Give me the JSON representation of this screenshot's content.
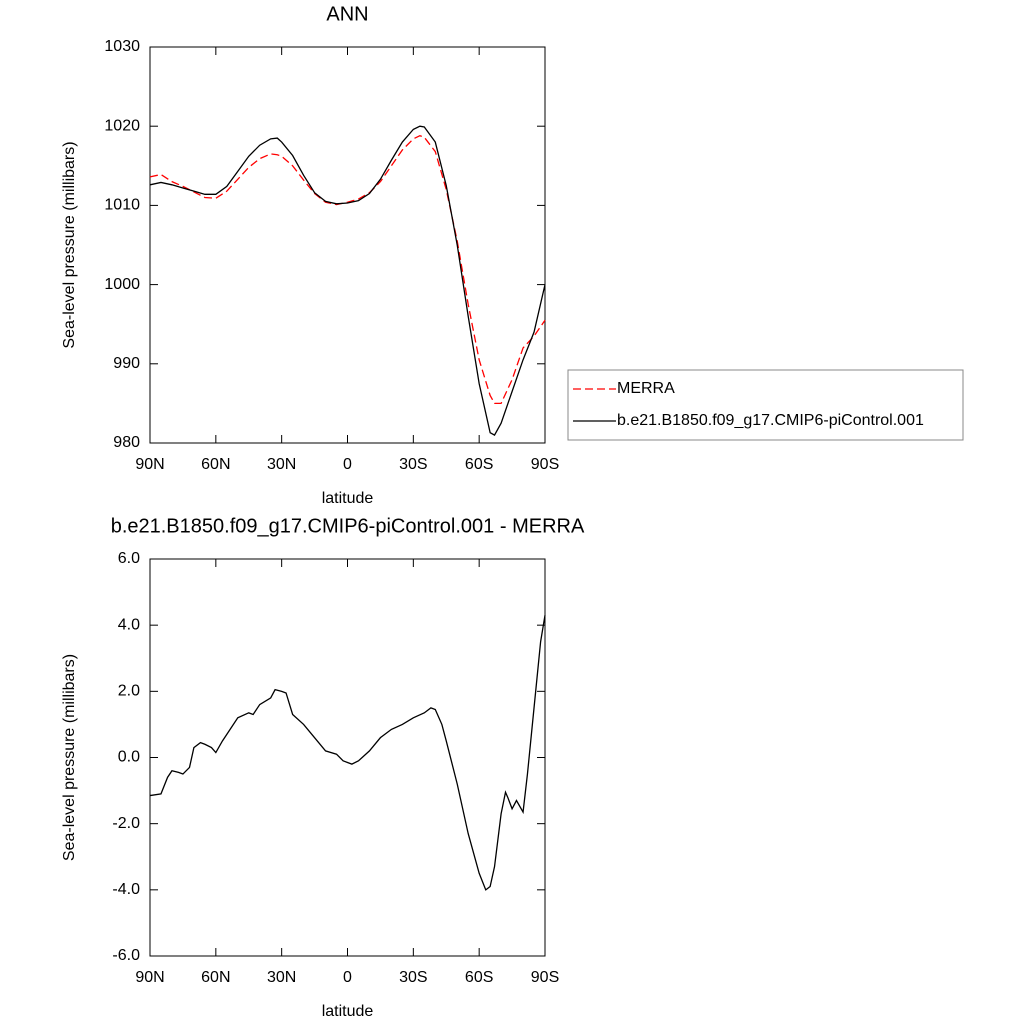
{
  "chart_data": [
    {
      "type": "line",
      "title": "ANN",
      "xlabel": "latitude",
      "ylabel": "Sea-level pressure (millibars)",
      "x": [
        90,
        85,
        80,
        75,
        70,
        65,
        60,
        55,
        50,
        45,
        40,
        35,
        32,
        30,
        25,
        20,
        15,
        10,
        5,
        0,
        -5,
        -10,
        -15,
        -20,
        -25,
        -30,
        -33,
        -35,
        -40,
        -45,
        -50,
        -55,
        -60,
        -65,
        -67,
        -70,
        -75,
        -80,
        -85,
        -90
      ],
      "series": [
        {
          "name": "MERRA",
          "color": "#ff0000",
          "style": "dashed",
          "values": [
            1013.6,
            1013.9,
            1013.0,
            1012.4,
            1011.7,
            1011.0,
            1010.9,
            1011.8,
            1013.3,
            1014.8,
            1015.9,
            1016.5,
            1016.4,
            1016.2,
            1015.0,
            1013.2,
            1011.5,
            1010.4,
            1010.1,
            1010.4,
            1010.8,
            1011.6,
            1013.0,
            1015.0,
            1017.0,
            1018.4,
            1018.8,
            1018.6,
            1016.8,
            1012.0,
            1005.5,
            997.5,
            990.5,
            986.0,
            985.0,
            985.0,
            988.0,
            992.0,
            993.5,
            995.5
          ]
        },
        {
          "name": "b.e21.B1850.f09_g17.CMIP6-piControl.001",
          "color": "#000000",
          "style": "solid",
          "values": [
            1012.6,
            1012.9,
            1012.6,
            1012.2,
            1011.8,
            1011.4,
            1011.4,
            1012.4,
            1014.3,
            1016.2,
            1017.6,
            1018.4,
            1018.5,
            1018.0,
            1016.3,
            1013.8,
            1011.6,
            1010.5,
            1010.2,
            1010.3,
            1010.6,
            1011.5,
            1013.3,
            1015.7,
            1018.0,
            1019.6,
            1020.0,
            1019.9,
            1018.0,
            1012.5,
            1005.0,
            996.0,
            987.5,
            981.3,
            981.0,
            982.5,
            986.5,
            990.5,
            994.0,
            1000.0
          ]
        }
      ],
      "xlim": [
        90,
        -90
      ],
      "xticks": [
        {
          "value": 90,
          "label": "90N"
        },
        {
          "value": 60,
          "label": "60N"
        },
        {
          "value": 30,
          "label": "30N"
        },
        0,
        {
          "value": -30,
          "label": "30S"
        },
        {
          "value": -60,
          "label": "60S"
        },
        {
          "value": -90,
          "label": "90S"
        }
      ],
      "ylim": [
        980,
        1030
      ],
      "yticks": [
        980,
        990,
        1000,
        1010,
        1020,
        1030
      ],
      "legend": "right"
    },
    {
      "type": "line",
      "title": "b.e21.B1850.f09_g17.CMIP6-piControl.001 - MERRA",
      "xlabel": "latitude",
      "ylabel": "Sea-level pressure (millibars)",
      "x": [
        90,
        85,
        82,
        80,
        77,
        75,
        72,
        70,
        67,
        65,
        62,
        60,
        57,
        55,
        50,
        45,
        43,
        40,
        35,
        33,
        30,
        28,
        25,
        20,
        15,
        10,
        5,
        2,
        0,
        -2,
        -5,
        -10,
        -15,
        -20,
        -25,
        -30,
        -35,
        -38,
        -40,
        -43,
        -45,
        -50,
        -55,
        -60,
        -63,
        -65,
        -67,
        -70,
        -72,
        -73,
        -75,
        -77,
        -80,
        -82,
        -85,
        -88,
        -90
      ],
      "values": [
        -1.15,
        -1.1,
        -0.6,
        -0.4,
        -0.45,
        -0.5,
        -0.3,
        0.3,
        0.45,
        0.4,
        0.3,
        0.15,
        0.5,
        0.7,
        1.2,
        1.35,
        1.3,
        1.6,
        1.8,
        2.05,
        2.0,
        1.95,
        1.3,
        1.0,
        0.6,
        0.2,
        0.1,
        -0.1,
        -0.15,
        -0.2,
        -0.1,
        0.2,
        0.6,
        0.85,
        1.0,
        1.2,
        1.35,
        1.5,
        1.45,
        1.0,
        0.5,
        -0.8,
        -2.3,
        -3.5,
        -4.0,
        -3.9,
        -3.3,
        -1.7,
        -1.05,
        -1.2,
        -1.55,
        -1.3,
        -1.65,
        -0.5,
        1.5,
        3.5,
        4.3
      ],
      "color": "#000000",
      "xlim": [
        90,
        -90
      ],
      "xticks": [
        {
          "value": 90,
          "label": "90N"
        },
        {
          "value": 60,
          "label": "60N"
        },
        {
          "value": 30,
          "label": "30N"
        },
        0,
        {
          "value": -30,
          "label": "30S"
        },
        {
          "value": -60,
          "label": "60S"
        },
        {
          "value": -90,
          "label": "90S"
        }
      ],
      "ylim": [
        -6,
        6
      ],
      "yticks": [
        {
          "value": -6,
          "label": "-6.0"
        },
        {
          "value": -4,
          "label": "-4.0"
        },
        {
          "value": -2,
          "label": "-2.0"
        },
        {
          "value": 0,
          "label": "0.0"
        },
        {
          "value": 2,
          "label": "2.0"
        },
        {
          "value": 4,
          "label": "4.0"
        },
        {
          "value": 6,
          "label": "6.0"
        }
      ]
    }
  ]
}
